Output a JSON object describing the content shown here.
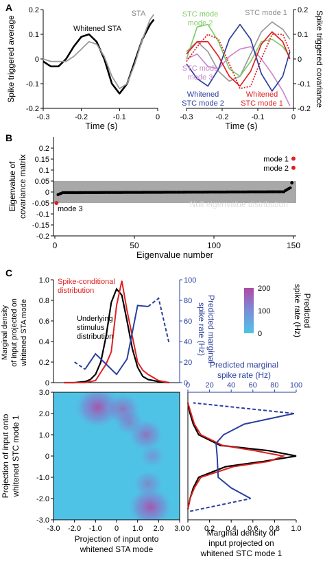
{
  "panel_labels": [
    "A",
    "B",
    "C"
  ],
  "chart_data": [
    {
      "id": "A-left",
      "type": "line",
      "ylabel": "Spike triggered average",
      "xlabel": "Time (s)",
      "xlim": [
        -0.3,
        0
      ],
      "ylim": [
        -0.2,
        0.2
      ],
      "xticks": [
        "-0.3",
        "-0.2",
        "-0.1",
        "0"
      ],
      "yticks": [
        "-0.2",
        "-0.1",
        "0",
        "0.1",
        "0.2"
      ],
      "annotations": [
        "Whitened STA",
        "STA"
      ],
      "series": [
        {
          "name": "Whitened STA",
          "color": "#000000",
          "x": [
            -0.3,
            -0.28,
            -0.26,
            -0.24,
            -0.22,
            -0.2,
            -0.18,
            -0.16,
            -0.14,
            -0.12,
            -0.1,
            -0.08,
            -0.06,
            -0.04,
            -0.02,
            -0.01
          ],
          "y": [
            -0.01,
            -0.03,
            -0.03,
            0.0,
            0.05,
            0.09,
            0.1,
            0.07,
            0.0,
            -0.1,
            -0.14,
            -0.1,
            -0.01,
            0.08,
            0.14,
            0.16
          ]
        },
        {
          "name": "STA",
          "color": "#999999",
          "x": [
            -0.3,
            -0.28,
            -0.26,
            -0.24,
            -0.22,
            -0.2,
            -0.18,
            -0.16,
            -0.14,
            -0.12,
            -0.1,
            -0.08,
            -0.06,
            -0.04,
            -0.02,
            -0.01
          ],
          "y": [
            0.0,
            -0.01,
            -0.01,
            -0.01,
            0.01,
            0.04,
            0.07,
            0.06,
            0.01,
            -0.07,
            -0.12,
            -0.1,
            -0.02,
            0.08,
            0.16,
            0.18
          ]
        }
      ]
    },
    {
      "id": "A-right",
      "type": "line",
      "ylabel": "Spike triggered covariance",
      "xlim": [
        -0.3,
        0
      ],
      "ylim": [
        -0.2,
        0.2
      ],
      "xticks": [
        "-0.3",
        "-0.2",
        "-0.1",
        "0"
      ],
      "yticks": [
        "-0.2",
        "-0.1",
        "0",
        "0.1",
        "0.2"
      ],
      "annotations": [
        "STC mode 1",
        "STC mode 2",
        "STC mode 3",
        "Whitened STC mode 2",
        "Whitened STC mode 1"
      ],
      "series": [
        {
          "name": "STC mode 1",
          "color": "#999999",
          "x": [
            -0.3,
            -0.27,
            -0.24,
            -0.21,
            -0.18,
            -0.15,
            -0.12,
            -0.09,
            -0.06,
            -0.03,
            -0.01
          ],
          "y": [
            0.03,
            0.07,
            0.03,
            -0.05,
            -0.09,
            -0.07,
            0.02,
            0.11,
            0.15,
            0.12,
            0.08
          ]
        },
        {
          "name": "STC mode 2",
          "color": "#7fcc6a",
          "x": [
            -0.3,
            -0.27,
            -0.24,
            -0.21,
            -0.18,
            -0.15,
            -0.12,
            -0.09,
            -0.06,
            -0.03,
            -0.01
          ],
          "y": [
            0.0,
            0.13,
            0.14,
            0.07,
            -0.04,
            -0.07,
            -0.01,
            0.07,
            0.08,
            0.05,
            0.01
          ]
        },
        {
          "name": "STC mode 3",
          "color": "#cc88cc",
          "x": [
            -0.3,
            -0.27,
            -0.24,
            -0.21,
            -0.18,
            -0.15,
            -0.12,
            -0.09,
            -0.06,
            -0.03,
            -0.01
          ],
          "y": [
            0.0,
            0.02,
            -0.03,
            -0.04,
            0.01,
            0.04,
            0.05,
            0.0,
            -0.06,
            -0.13,
            -0.19
          ]
        },
        {
          "name": "Whitened STC mode 2",
          "color": "#2a3f9e",
          "x": [
            -0.3,
            -0.27,
            -0.24,
            -0.21,
            -0.18,
            -0.15,
            -0.12,
            -0.09,
            -0.06,
            -0.03,
            -0.01
          ],
          "y": [
            -0.02,
            -0.08,
            -0.11,
            -0.04,
            0.08,
            0.14,
            0.08,
            -0.06,
            -0.13,
            -0.07,
            0.03
          ]
        },
        {
          "name": "Whitened STC mode 1",
          "color": "#e02020",
          "x": [
            -0.3,
            -0.27,
            -0.24,
            -0.21,
            -0.18,
            -0.15,
            -0.12,
            -0.09,
            -0.06,
            -0.03,
            -0.01
          ],
          "y": [
            0.02,
            0.07,
            0.07,
            0.01,
            -0.07,
            -0.11,
            -0.05,
            0.06,
            0.11,
            0.07,
            0.0
          ]
        },
        {
          "name": "Whitened STC mode 1 (dotted)",
          "color": "#e02020",
          "x": [
            -0.3,
            -0.27,
            -0.24,
            -0.21,
            -0.18,
            -0.15,
            -0.12,
            -0.09,
            -0.06,
            -0.03,
            -0.01
          ],
          "y": [
            -0.01,
            0.05,
            0.1,
            0.08,
            -0.02,
            -0.12,
            -0.11,
            0.0,
            0.1,
            0.1,
            0.03
          ]
        }
      ]
    },
    {
      "id": "B",
      "type": "scatter",
      "ylabel": "Eigenvalue of covariance matrix",
      "xlabel": "Eigenvalue number",
      "xlim": [
        0,
        150
      ],
      "ylim": [
        -0.2,
        0.25
      ],
      "xticks": [
        "0",
        "50",
        "100",
        "150"
      ],
      "yticks": [
        "-0.2",
        "-0.15",
        "-0.1",
        "-0.05",
        "0",
        "0.05",
        "0.1",
        "0.15",
        "0.2"
      ],
      "null_band": [
        -0.05,
        0.05
      ],
      "null_label": "Null eigenvalue distribution",
      "annotations": [
        "mode 1",
        "mode 2",
        "mode 3"
      ],
      "highlighted": [
        {
          "label": "mode 1",
          "x": 150,
          "y": 0.152
        },
        {
          "label": "mode 2",
          "x": 150,
          "y": 0.11
        },
        {
          "label": "mode 3",
          "x": 1,
          "y": -0.05
        }
      ]
    },
    {
      "id": "C-top",
      "type": "line",
      "ylabel": "Marginal density of input projected on whitened STA mode",
      "y2label": "Predicted marginal spike rate (Hz)",
      "ylim": [
        0,
        1.0
      ],
      "y2lim": [
        0,
        100
      ],
      "yticks": [
        "0",
        "0.2",
        "0.4",
        "0.6",
        "0.8",
        "1.0"
      ],
      "y2ticks": [
        "0",
        "20",
        "40",
        "60",
        "80",
        "100"
      ],
      "annotations": [
        "Spike-conditional distribution",
        "Underlying stimulus distribution"
      ],
      "series": [
        {
          "name": "Underlying stimulus distribution",
          "color": "#000000",
          "x": [
            -2.5,
            -2.0,
            -1.5,
            -1.25,
            -1.0,
            -0.75,
            -0.5,
            -0.25,
            0,
            0.25,
            0.5,
            0.75,
            1.0,
            1.25,
            1.5,
            2.0,
            2.5
          ],
          "y": [
            0,
            0,
            0.01,
            0.03,
            0.08,
            0.2,
            0.45,
            0.78,
            0.91,
            0.85,
            0.6,
            0.33,
            0.15,
            0.06,
            0.03,
            0.01,
            0
          ]
        },
        {
          "name": "Spike-conditional distribution",
          "color": "#e02020",
          "x": [
            -2.5,
            -2.0,
            -1.5,
            -1.25,
            -1.0,
            -0.75,
            -0.5,
            -0.25,
            0,
            0.25,
            0.5,
            0.75,
            1.0,
            1.25,
            1.5,
            2.0,
            2.5
          ],
          "y": [
            0,
            0,
            0.0,
            0.01,
            0.02,
            0.1,
            0.18,
            0.3,
            0.75,
            0.99,
            0.7,
            0.45,
            0.2,
            0.12,
            0.08,
            0.02,
            0
          ]
        },
        {
          "name": "Predicted marginal spike rate",
          "color": "#2a3f9e",
          "axis": "y2",
          "x": [
            -2.0,
            -1.5,
            -1.0,
            -0.5,
            0,
            0.5,
            1.0,
            1.5,
            2.0,
            2.5
          ],
          "y": [
            20,
            13,
            28,
            18,
            8,
            23,
            75,
            74,
            82,
            38
          ]
        }
      ]
    },
    {
      "id": "C-heatmap",
      "type": "heatmap",
      "xlabel": "Projection of input onto whitened STA mode",
      "ylabel": "Projection of input onto whitened STC mode 1",
      "xlim": [
        -3,
        3
      ],
      "ylim": [
        -3,
        3
      ],
      "xticks": [
        "-3.0",
        "-2.0",
        "-1.0",
        "0",
        "1.0",
        "2.0",
        "3.0"
      ],
      "yticks": [
        "-3.0",
        "-2.0",
        "-1.0",
        "0",
        "1.0",
        "2.0",
        "3.0"
      ],
      "colorbar_label": "Predicted spike rate (Hz)",
      "colorbar_ticks": [
        "0",
        "100",
        "200"
      ],
      "colormap": [
        "#4fc3e6",
        "#7a8fd8",
        "#b04aa6"
      ],
      "hotspots": [
        {
          "x": -0.9,
          "y": 2.3,
          "rate": 170
        },
        {
          "x": 0.3,
          "y": 2.2,
          "rate": 110
        },
        {
          "x": 1.6,
          "y": -2.4,
          "rate": 160
        },
        {
          "x": 1.4,
          "y": 1.0,
          "rate": 110
        },
        {
          "x": 0.6,
          "y": 1.6,
          "rate": 80
        },
        {
          "x": 1.5,
          "y": -1.3,
          "rate": 80
        },
        {
          "x": 1.7,
          "y": 0.0,
          "rate": 60
        }
      ]
    },
    {
      "id": "C-right",
      "type": "line",
      "xlabel": "Marginal density of input projected on whitened STC mode 1",
      "x2label": "Predicted marginal spike rate (Hz)",
      "xlim": [
        0,
        1.0
      ],
      "x2lim": [
        0,
        100
      ],
      "xticks": [
        "0",
        "0.2",
        "0.4",
        "0.6",
        "0.8",
        "1.0"
      ],
      "x2ticks": [
        "0",
        "20",
        "40",
        "60",
        "80",
        "100"
      ],
      "series": [
        {
          "name": "Underlying stimulus distribution",
          "color": "#000000",
          "y": [
            -2.5,
            -2.0,
            -1.5,
            -1.0,
            -0.5,
            -0.25,
            0,
            0.25,
            0.5,
            1.0,
            1.5,
            2.0,
            2.5
          ],
          "x": [
            0,
            0.02,
            0.05,
            0.1,
            0.35,
            0.7,
            1.0,
            0.75,
            0.3,
            0.1,
            0.05,
            0.02,
            0
          ]
        },
        {
          "name": "Spike-conditional distribution",
          "color": "#e02020",
          "y": [
            -2.5,
            -2.0,
            -1.5,
            -1.0,
            -0.5,
            -0.25,
            0,
            0.25,
            0.5,
            1.0,
            1.5,
            2.0,
            2.5
          ],
          "x": [
            0,
            0.02,
            0.06,
            0.12,
            0.42,
            0.75,
            0.88,
            0.62,
            0.32,
            0.12,
            0.06,
            0.03,
            0
          ]
        },
        {
          "name": "Predicted marginal spike rate",
          "color": "#2a3f9e",
          "axis": "x2",
          "y": [
            -2.6,
            -2.0,
            -1.5,
            -1.0,
            0,
            0.6,
            1.0,
            1.5,
            2.0,
            2.5
          ],
          "x": [
            2,
            58,
            40,
            28,
            27,
            26,
            33,
            52,
            98,
            5
          ]
        }
      ]
    }
  ]
}
